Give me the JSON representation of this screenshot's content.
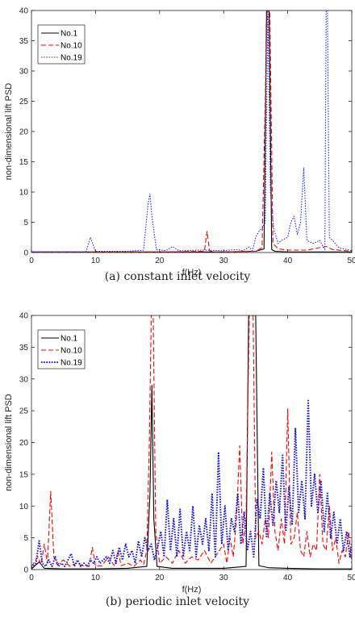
{
  "chart_data": [
    {
      "type": "line",
      "caption": "(a) constant inlet velocity",
      "xlabel": "f(Hz)",
      "ylabel": "non-dimensional lift PSD",
      "xlim": [
        0,
        50
      ],
      "ylim": [
        0,
        40
      ],
      "xticks": [
        "0",
        "10",
        "20",
        "30",
        "40",
        "50"
      ],
      "yticks": [
        "0",
        "5",
        "10",
        "15",
        "20",
        "25",
        "30",
        "35",
        "40"
      ],
      "legend_position": "top-left",
      "series": [
        {
          "name": "No.1",
          "color": "#000000",
          "style": "solid",
          "x": [
            0,
            10,
            20,
            30,
            35,
            36.3,
            36.7,
            36.9,
            37.1,
            37.5,
            38,
            40,
            45,
            50
          ],
          "y": [
            0.1,
            0.1,
            0.1,
            0.1,
            0.2,
            0.6,
            40,
            40,
            40,
            0.5,
            0.2,
            0.1,
            0.1,
            0.1
          ]
        },
        {
          "name": "No.10",
          "color": "#ff0000",
          "style": "dashed",
          "x": [
            0,
            10,
            20,
            27,
            27.4,
            27.8,
            28.5,
            30,
            35,
            36,
            36.8,
            37.0,
            37.2,
            37.7,
            38.5,
            40,
            43,
            45,
            46,
            47,
            50
          ],
          "y": [
            0.1,
            0.1,
            0.1,
            0.2,
            3.5,
            0.3,
            0.1,
            0.1,
            0.2,
            0.8,
            40,
            40,
            40,
            1.5,
            0.6,
            0.4,
            0.4,
            0.8,
            1.0,
            0.5,
            0.2
          ]
        },
        {
          "name": "No.19",
          "color": "#2233ff",
          "style": "dotted",
          "x": [
            0,
            8.5,
            9.2,
            10,
            15,
            17.5,
            18.2,
            18.5,
            18.8,
            19.5,
            21,
            22,
            23,
            27,
            30,
            32,
            33,
            34,
            34.5,
            35,
            35.5,
            36,
            36.5,
            36.9,
            37.3,
            37.8,
            38.5,
            39,
            40,
            40.5,
            41,
            41.5,
            42,
            42.5,
            43,
            44,
            45,
            45.5,
            45.8,
            46.0,
            46.2,
            46.5,
            47,
            48,
            50
          ],
          "y": [
            0.1,
            0.1,
            2.5,
            0.2,
            0.2,
            0.4,
            8,
            9.7,
            6,
            0.5,
            0.3,
            1.0,
            0.3,
            0.4,
            0.3,
            0.5,
            0.3,
            0.9,
            0.3,
            2.5,
            3.5,
            4,
            5,
            40,
            10,
            4,
            1.5,
            2,
            2.5,
            5,
            6,
            3,
            5,
            14,
            2,
            1.5,
            2,
            1,
            0.5,
            40,
            40,
            2.5,
            2,
            0.8,
            0.3
          ]
        }
      ]
    },
    {
      "type": "line",
      "caption": "(b) periodic inlet velocity",
      "xlabel": "f(Hz)",
      "ylabel": "non-dimensional lift PSD",
      "xlim": [
        0,
        50
      ],
      "ylim": [
        0,
        40
      ],
      "xticks": [
        "0",
        "10",
        "20",
        "30",
        "40",
        "50"
      ],
      "yticks": [
        "0",
        "5",
        "10",
        "15",
        "20",
        "25",
        "30",
        "35",
        "40"
      ],
      "legend_position": "top-left",
      "series": [
        {
          "name": "No.1",
          "color": "#000000",
          "style": "solid",
          "x": [
            0,
            1.2,
            2,
            5,
            10,
            15,
            18,
            18.5,
            18.8,
            19.1,
            19.6,
            22,
            30,
            33.5,
            33.9,
            34.2,
            34.6,
            35.0,
            35.5,
            37,
            40,
            45,
            50
          ],
          "y": [
            0.1,
            1.2,
            0.2,
            0.1,
            0.1,
            0.2,
            0.5,
            12,
            29,
            8,
            0.5,
            0.2,
            0.2,
            0.5,
            40,
            40,
            40,
            40,
            0.6,
            0.3,
            0.2,
            0.1,
            0.1
          ]
        },
        {
          "name": "No.10",
          "color": "#ff0000",
          "style": "dashed",
          "x": [
            0,
            1,
            1.5,
            2,
            2.5,
            3,
            3.5,
            4,
            5,
            6,
            7,
            8,
            9,
            9.5,
            10,
            11,
            12,
            13,
            13.5,
            14,
            15,
            16,
            17,
            17.5,
            18,
            18.4,
            18.7,
            19.0,
            19.4,
            20,
            21,
            22,
            23,
            24,
            25,
            26,
            27,
            28,
            29,
            30,
            30.5,
            31,
            31.5,
            32,
            32.5,
            33,
            33.5,
            34,
            34.3,
            34.6,
            35,
            35.5,
            36,
            36.5,
            37,
            37.5,
            38,
            38.5,
            39,
            39.5,
            40,
            40.5,
            41,
            41.5,
            42,
            42.5,
            43,
            43.5,
            44,
            44.5,
            45,
            45.5,
            46,
            46.5,
            47,
            47.5,
            48,
            48.5,
            49,
            49.5,
            50
          ],
          "y": [
            0.5,
            2,
            0.8,
            4,
            1,
            12.3,
            2,
            0.8,
            1.5,
            0.5,
            1,
            0.6,
            0.5,
            3.5,
            0.5,
            0.6,
            2,
            0.5,
            3,
            0.6,
            1,
            0.5,
            1.5,
            0.8,
            3,
            20,
            40,
            40,
            6,
            1,
            2,
            1,
            3,
            1,
            2,
            1.5,
            3,
            1,
            2.5,
            4,
            1,
            5,
            2,
            8,
            19.5,
            4,
            8,
            40,
            40,
            40,
            5,
            6,
            4,
            8,
            5,
            18.5,
            6,
            3,
            8,
            4,
            25.3,
            4,
            5,
            9,
            3,
            2,
            6,
            2,
            4,
            3,
            15,
            4,
            3,
            10,
            3,
            5,
            1,
            3,
            2,
            6,
            1
          ]
        },
        {
          "name": "No.19",
          "color": "#1a1adb",
          "style": "dotted",
          "x": [
            0,
            0.7,
            1.2,
            1.7,
            2.2,
            2.7,
            3.2,
            3.7,
            4.2,
            4.7,
            5.2,
            5.7,
            6.2,
            6.7,
            7.2,
            7.7,
            8.2,
            8.7,
            9.2,
            9.7,
            10.2,
            10.7,
            11.2,
            11.7,
            12.2,
            12.7,
            13.2,
            13.7,
            14.2,
            14.7,
            15.2,
            15.7,
            16.2,
            16.7,
            17.2,
            17.7,
            18.2,
            18.7,
            19.2,
            19.7,
            20.2,
            20.7,
            21.2,
            21.7,
            22.2,
            22.7,
            23.2,
            23.7,
            24.2,
            24.7,
            25.2,
            25.7,
            26.2,
            26.7,
            27.2,
            27.7,
            28.2,
            28.7,
            29.2,
            29.7,
            30.2,
            30.7,
            31.2,
            31.7,
            32.2,
            32.7,
            33.2,
            33.7,
            34.2,
            34.7,
            35.2,
            35.7,
            36.2,
            36.7,
            37.2,
            37.7,
            38.2,
            38.7,
            39.2,
            39.7,
            40.2,
            40.7,
            41.2,
            41.7,
            42.2,
            42.7,
            43.2,
            43.7,
            44.2,
            44.7,
            45.2,
            45.7,
            46.2,
            46.7,
            47.2,
            47.7,
            48.2,
            48.7,
            49.2,
            49.7,
            50
          ],
          "y": [
            0.3,
            1,
            4.5,
            1,
            0.5,
            1.5,
            0.5,
            2,
            0.5,
            1,
            0.5,
            1.5,
            2.5,
            0.5,
            1.5,
            0.5,
            1,
            0.5,
            1.5,
            1,
            2,
            1,
            1.5,
            2,
            1,
            3,
            1,
            3.5,
            1.5,
            4,
            2,
            3,
            1,
            4.5,
            2,
            5,
            3,
            4,
            1.5,
            3.5,
            6,
            2,
            11,
            3,
            8,
            2,
            9.5,
            2,
            6,
            3,
            10,
            2,
            7,
            4,
            8,
            3,
            12,
            2,
            18.5,
            4,
            10,
            3,
            8,
            6,
            12,
            4,
            9,
            3,
            6,
            2,
            11,
            8,
            16,
            5,
            12,
            7,
            14,
            9,
            18,
            6,
            13,
            7,
            22.3,
            9,
            14,
            8,
            26.8,
            10,
            15,
            9,
            14,
            6,
            12,
            5,
            9,
            4,
            8,
            3,
            6,
            2,
            4
          ]
        }
      ]
    }
  ]
}
